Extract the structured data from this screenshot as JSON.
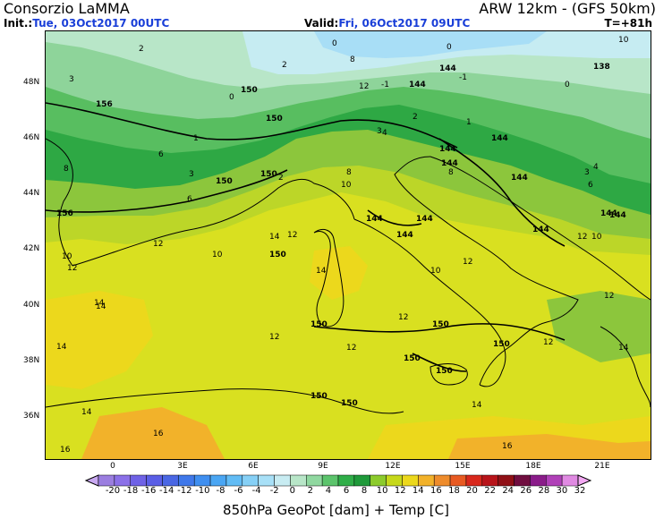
{
  "header": {
    "left_title": "Consorzio LaMMA",
    "right_title": "ARW 12km - (GFS 50km)",
    "init_label": "Init.:",
    "init_value": "Tue, 03Oct2017 00UTC",
    "valid_label": "Valid:",
    "valid_value": "Fri, 06Oct2017 09UTC",
    "forecast_step": "T=+81h"
  },
  "axes": {
    "lat_labels": [
      "48N",
      "46N",
      "44N",
      "42N",
      "40N",
      "38N",
      "36N"
    ],
    "lon_labels": [
      "0",
      "3E",
      "6E",
      "9E",
      "12E",
      "15E",
      "18E",
      "21E"
    ]
  },
  "colorbar": {
    "ticks": [
      "-20",
      "-18",
      "-16",
      "-14",
      "-12",
      "-10",
      "-8",
      "-6",
      "-4",
      "-2",
      "0",
      "2",
      "4",
      "6",
      "8",
      "10",
      "12",
      "14",
      "16",
      "18",
      "20",
      "22",
      "24",
      "26",
      "28",
      "30",
      "32"
    ],
    "colors": [
      "#9b7ee0",
      "#8b70e8",
      "#6f62e6",
      "#5a5ee6",
      "#4a67e4",
      "#3f78ea",
      "#3f8ff0",
      "#4aa6f3",
      "#62bcf5",
      "#86d0f6",
      "#a8e0f7",
      "#c8ecf2",
      "#b8e6c8",
      "#90d8a0",
      "#5cc46c",
      "#2fae48",
      "#1f9a3a",
      "#8ccb2c",
      "#c6d81a",
      "#ecd81c",
      "#f2b22a",
      "#ee8c2c",
      "#e85a22",
      "#d8281c",
      "#b8141a",
      "#901016",
      "#700e40",
      "#8a1c8a",
      "#b040b8",
      "#e08ae2"
    ],
    "left_arrow_color": "#c8a8f0",
    "right_arrow_color": "#f2a8f2"
  },
  "map": {
    "temperature_labels": [
      "2",
      "3",
      "0",
      "-1",
      "1",
      "3",
      "4",
      "6",
      "8",
      "10",
      "12",
      "14",
      "16",
      "2",
      "6",
      "8",
      "10",
      "12",
      "12",
      "14",
      "14",
      "10",
      "12",
      "10",
      "12",
      "12",
      "12",
      "14",
      "14",
      "16",
      "14",
      "14",
      "12",
      "16",
      "10",
      "12",
      "12",
      "14",
      "3",
      "6",
      "4",
      "8",
      "10",
      "12",
      "8",
      "2",
      "3",
      "1",
      "0",
      "2",
      "-1",
      "0",
      "0"
    ],
    "geopotential_labels": [
      "150",
      "150",
      "150",
      "150",
      "156",
      "156",
      "150",
      "150",
      "144",
      "144",
      "144",
      "144",
      "144",
      "144",
      "144",
      "144",
      "144",
      "144",
      "144",
      "150",
      "150",
      "150",
      "150",
      "150",
      "150",
      "144",
      "138"
    ]
  },
  "footer": {
    "caption": "850hPa GeoPot [dam] + Temp [C]"
  }
}
